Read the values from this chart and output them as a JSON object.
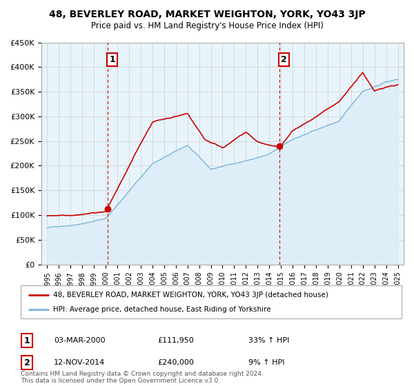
{
  "title": "48, BEVERLEY ROAD, MARKET WEIGHTON, YORK, YO43 3JP",
  "subtitle": "Price paid vs. HM Land Registry's House Price Index (HPI)",
  "legend_line1": "48, BEVERLEY ROAD, MARKET WEIGHTON, YORK, YO43 3JP (detached house)",
  "legend_line2": "HPI: Average price, detached house, East Riding of Yorkshire",
  "annotation1_label": "1",
  "annotation1_date": "03-MAR-2000",
  "annotation1_price": "£111,950",
  "annotation1_hpi": "33% ↑ HPI",
  "annotation2_label": "2",
  "annotation2_date": "12-NOV-2014",
  "annotation2_price": "£240,000",
  "annotation2_hpi": "9% ↑ HPI",
  "footer": "Contains HM Land Registry data © Crown copyright and database right 2024.\nThis data is licensed under the Open Government Licence v3.0.",
  "sale1_year": 2000.17,
  "sale1_value": 111950,
  "sale2_year": 2014.87,
  "sale2_value": 240000,
  "hpi_color": "#7ab4d8",
  "hpi_fill_color": "#ddeef8",
  "price_color": "#cc0000",
  "vline_color": "#cc0000",
  "ylim_min": 0,
  "ylim_max": 450000,
  "yticks": [
    0,
    50000,
    100000,
    150000,
    200000,
    250000,
    300000,
    350000,
    400000,
    450000
  ],
  "background_color": "#ffffff",
  "plot_bg_color": "#e8f4fb",
  "grid_color": "#cccccc"
}
